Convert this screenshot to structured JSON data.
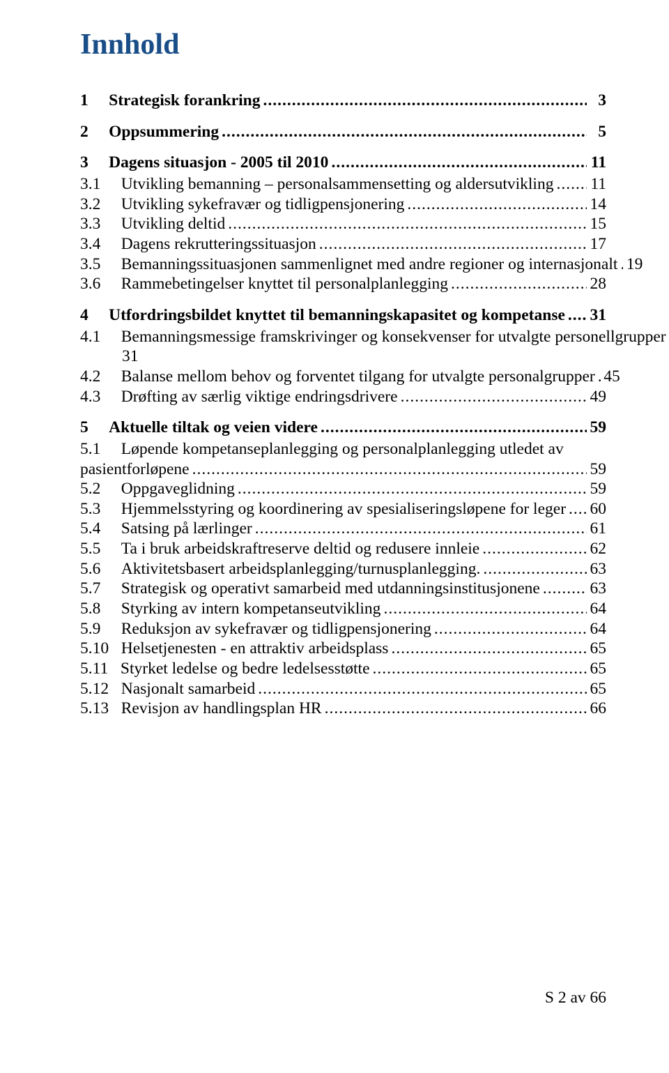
{
  "title": "Innhold",
  "footer": "S 2 av 66",
  "toc": [
    {
      "level": 1,
      "num": "1",
      "text": "Strategisk forankring",
      "page": "3"
    },
    {
      "level": 1,
      "num": "2",
      "text": "Oppsummering",
      "page": "5"
    },
    {
      "level": 1,
      "num": "3",
      "text": "Dagens situasjon - 2005 til 2010",
      "page": "11"
    },
    {
      "level": 2,
      "num": "3.1",
      "text": "Utvikling bemanning – personalsammensetting og aldersutvikling",
      "page": "11"
    },
    {
      "level": 2,
      "num": "3.2",
      "text": "Utvikling sykefravær og tidligpensjonering",
      "page": "14"
    },
    {
      "level": 2,
      "num": "3.3",
      "text": "Utvikling deltid",
      "page": "15"
    },
    {
      "level": 2,
      "num": "3.4",
      "text": "Dagens rekrutteringssituasjon",
      "page": "17"
    },
    {
      "level": 2,
      "num": "3.5",
      "text": "Bemanningssituasjonen sammenlignet med andre regioner og internasjonalt",
      "page": "19"
    },
    {
      "level": 2,
      "num": "3.6",
      "text": "Rammebetingelser knyttet til personalplanlegging",
      "page": "28"
    },
    {
      "level": 1,
      "num": "4",
      "text": "Utfordringsbildet knyttet til bemanningskapasitet og kompetanse",
      "page": "31"
    },
    {
      "level": 2,
      "num": "4.1",
      "text": "Bemanningsmessige framskrivinger og konsekvenser for utvalgte personellgrupper",
      "page": "",
      "noline": true,
      "cont": "31"
    },
    {
      "level": 2,
      "num": "4.2",
      "text": "Balanse mellom behov og forventet tilgang for utvalgte personalgrupper",
      "page": "45"
    },
    {
      "level": 2,
      "num": "4.3",
      "text": "Drøfting av særlig viktige endringsdrivere",
      "page": "49"
    },
    {
      "level": 1,
      "num": "5",
      "text": "Aktuelle tiltak og veien videre",
      "page": "59"
    },
    {
      "level": 2,
      "num": "5.1",
      "text": "Løpende kompetanseplanlegging og personalplanlegging utledet av",
      "page": "",
      "noline": true
    },
    {
      "level": 2,
      "num": "",
      "text": "pasientforløpene",
      "page": "59",
      "flush": true
    },
    {
      "level": 2,
      "num": "5.2",
      "text": "Oppgaveglidning",
      "page": "59"
    },
    {
      "level": 2,
      "num": "5.3",
      "text": "Hjemmelsstyring og koordinering av spesialiseringsløpene for leger",
      "page": "60"
    },
    {
      "level": 2,
      "num": "5.4",
      "text": "Satsing på lærlinger",
      "page": "61"
    },
    {
      "level": 2,
      "num": "5.5",
      "text": "Ta i bruk arbeidskraftreserve deltid og redusere innleie",
      "page": "62"
    },
    {
      "level": 2,
      "num": "5.6",
      "text": "Aktivitetsbasert arbeidsplanlegging/turnusplanlegging.",
      "page": "63"
    },
    {
      "level": 2,
      "num": "5.7",
      "text": "Strategisk og operativt samarbeid med utdanningsinstitusjonene",
      "page": "63"
    },
    {
      "level": 2,
      "num": "5.8",
      "text": "Styrking av intern kompetanseutvikling",
      "page": "64"
    },
    {
      "level": 2,
      "num": "5.9",
      "text": "Reduksjon av sykefravær og tidligpensjonering",
      "page": "64"
    },
    {
      "level": 2,
      "num": "5.10",
      "text": "Helsetjenesten - en attraktiv arbeidsplass",
      "page": "65"
    },
    {
      "level": 2,
      "num": "5.11",
      "text": "Styrket ledelse og bedre ledelsesstøtte",
      "page": "65"
    },
    {
      "level": 2,
      "num": "5.12",
      "text": "Nasjonalt samarbeid",
      "page": "65"
    },
    {
      "level": 2,
      "num": "5.13",
      "text": "Revisjon av handlingsplan HR",
      "page": "66"
    }
  ]
}
